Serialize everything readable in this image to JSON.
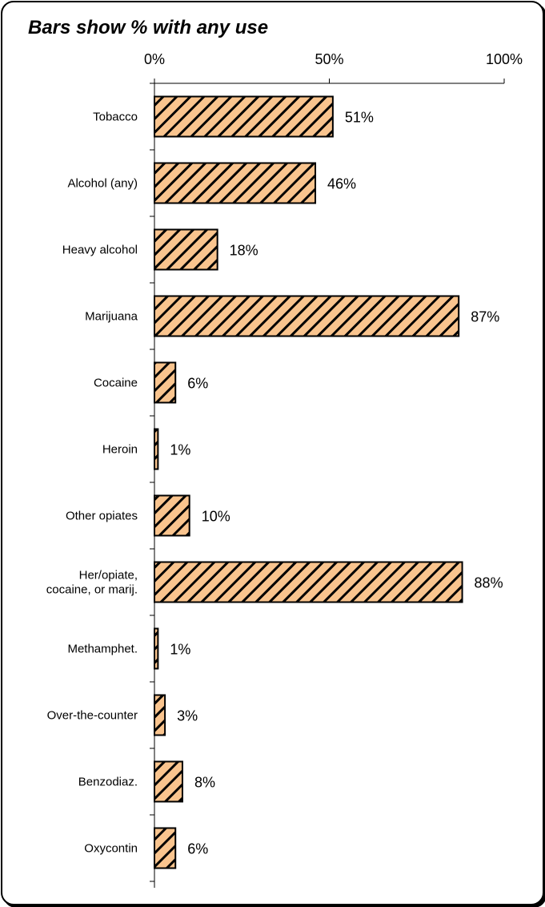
{
  "chart_data": {
    "type": "bar",
    "orientation": "horizontal",
    "title": "Bars show % with any use",
    "xlim": [
      0,
      100
    ],
    "ticks": [
      "0%",
      "50%",
      "100%"
    ],
    "categories": [
      [
        "Tobacco"
      ],
      [
        "Alcohol  (any)"
      ],
      [
        "Heavy alcohol"
      ],
      [
        "Marijuana"
      ],
      [
        "Cocaine"
      ],
      [
        "Heroin"
      ],
      [
        "Other opiates"
      ],
      [
        "Her/opiate,",
        "cocaine, or marij."
      ],
      [
        "Methamphet."
      ],
      [
        "Over-the-counter"
      ],
      [
        "Benzodiaz."
      ],
      [
        "Oxycontin"
      ]
    ],
    "values": [
      51,
      46,
      18,
      87,
      6,
      1,
      10,
      88,
      1,
      3,
      8,
      6
    ],
    "value_labels": [
      "51%",
      "46%",
      "18%",
      "87%",
      "6%",
      "1%",
      "10%",
      "88%",
      "1%",
      "3%",
      "8%",
      "6%"
    ],
    "bar_color": "#f9c48e",
    "hatch_color": "#000000",
    "grid": false
  }
}
